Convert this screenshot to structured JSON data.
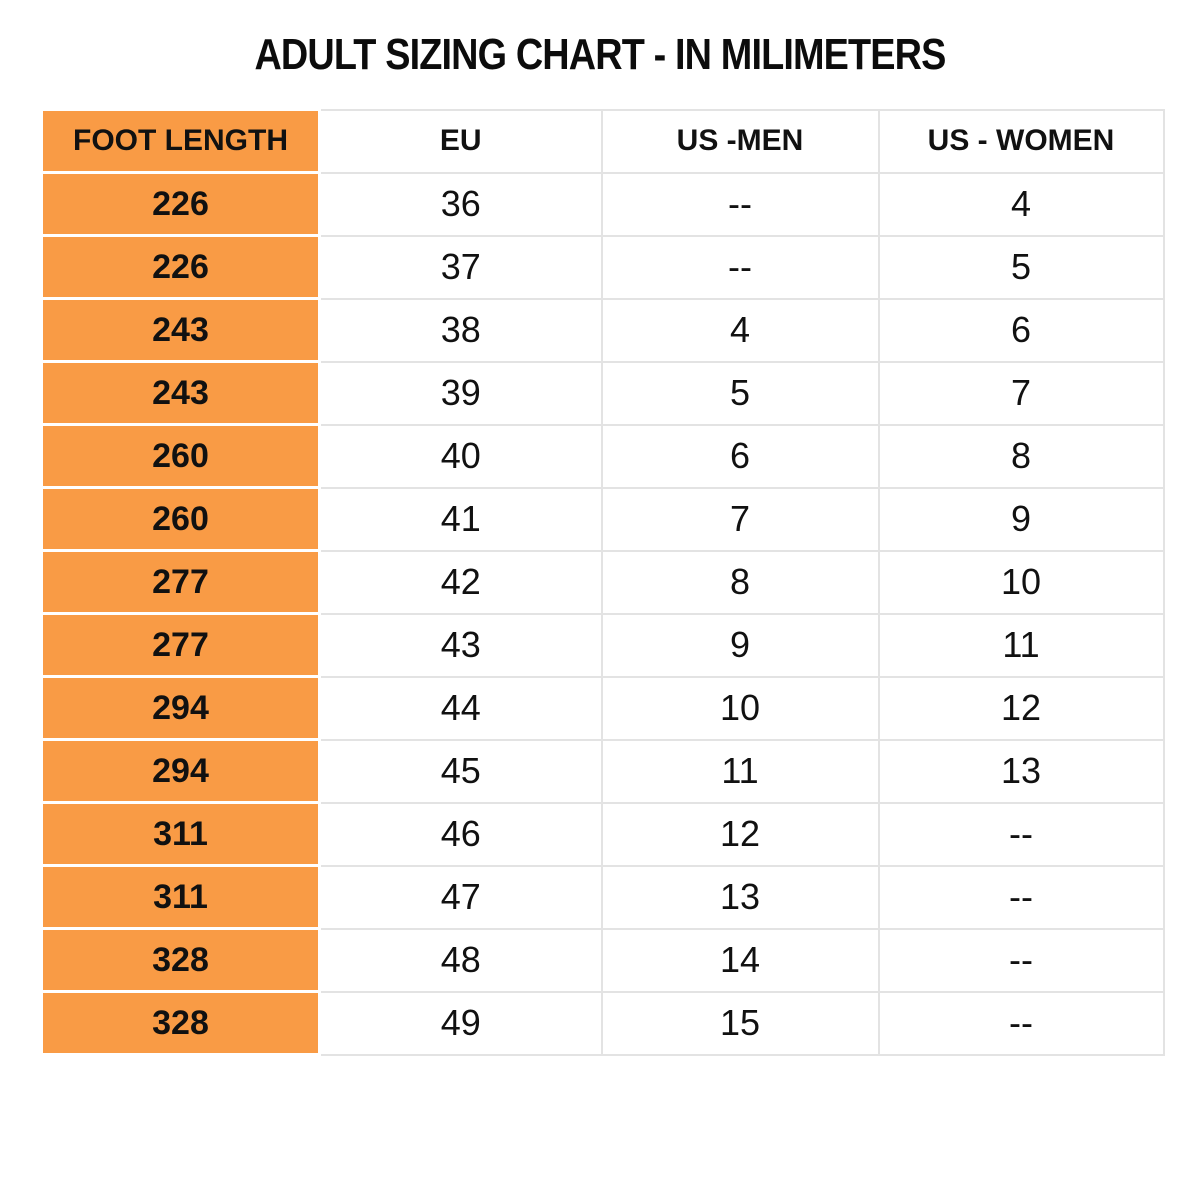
{
  "title": "ADULT SIZING CHART - IN MILIMETERS",
  "colors": {
    "accent_orange": "#F99B45",
    "grid_line": "#E3E3E3",
    "text_black": "#111111"
  },
  "chart_data": {
    "type": "table",
    "title": "ADULT SIZING CHART - IN MILIMETERS",
    "columns": [
      "FOOT LENGTH",
      "EU",
      "US -MEN",
      "US - WOMEN"
    ],
    "rows": [
      [
        "226",
        "36",
        "--",
        "4"
      ],
      [
        "226",
        "37",
        "--",
        "5"
      ],
      [
        "243",
        "38",
        "4",
        "6"
      ],
      [
        "243",
        "39",
        "5",
        "7"
      ],
      [
        "260",
        "40",
        "6",
        "8"
      ],
      [
        "260",
        "41",
        "7",
        "9"
      ],
      [
        "277",
        "42",
        "8",
        "10"
      ],
      [
        "277",
        "43",
        "9",
        "11"
      ],
      [
        "294",
        "44",
        "10",
        "12"
      ],
      [
        "294",
        "45",
        "11",
        "13"
      ],
      [
        "311",
        "46",
        "12",
        "--"
      ],
      [
        "311",
        "47",
        "13",
        "--"
      ],
      [
        "328",
        "48",
        "14",
        "--"
      ],
      [
        "328",
        "49",
        "15",
        "--"
      ]
    ],
    "layout": {
      "header_column_highlighted": true,
      "units": "millimeters (foot length column)"
    }
  }
}
